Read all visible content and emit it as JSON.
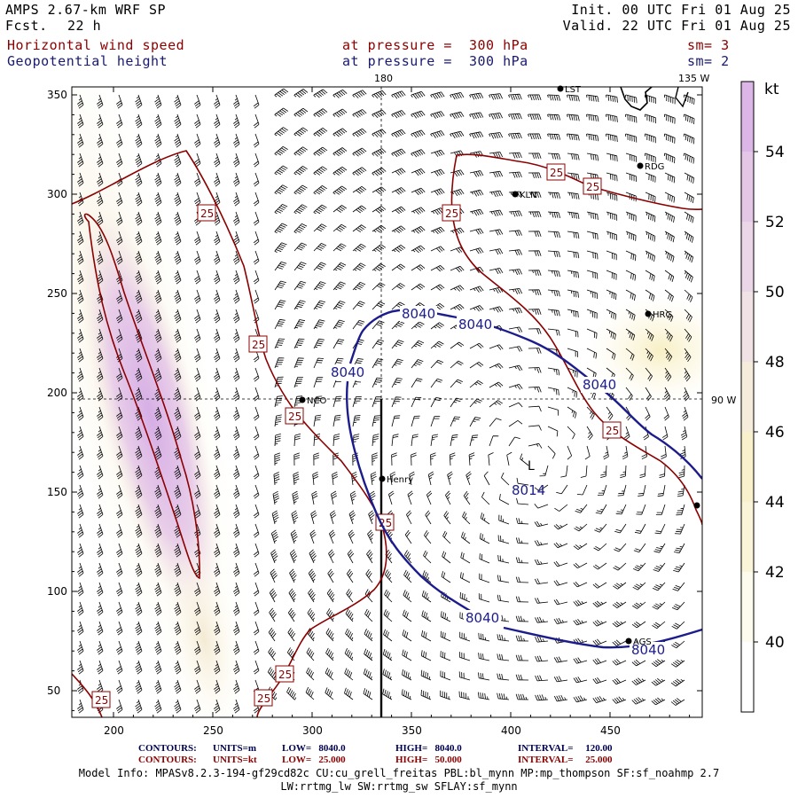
{
  "header": {
    "model": "AMPS 2.67-km WRF SP",
    "fcst_label": "Fcst.",
    "fcst_value": "22 h",
    "init": "Init. 00 UTC Fri 01 Aug 25",
    "valid": "Valid. 22 UTC Fri 01 Aug 25",
    "field1": "Horizontal wind speed",
    "field1_level": "at pressure =  300 hPa",
    "field1_sm": "sm= 3",
    "field2": "Geopotential height",
    "field2_level": "at pressure =  300 hPa",
    "field2_sm": "sm= 2"
  },
  "map": {
    "meridian_top_label": "180",
    "meridian_right_top_label": "135 W",
    "parallel_label": "90 W",
    "x_ticks": [
      "200",
      "250",
      "300",
      "350",
      "400",
      "450"
    ],
    "y_ticks": [
      "350",
      "300",
      "250",
      "200",
      "150",
      "100",
      "50"
    ],
    "stations": [
      {
        "name": "LST"
      },
      {
        "name": "RDG"
      },
      {
        "name": "KLN"
      },
      {
        "name": "HRG"
      },
      {
        "name": "NCO"
      },
      {
        "name": "Henry"
      },
      {
        "name": "AGS"
      }
    ],
    "height_contour_labels": [
      "8040",
      "8040",
      "8040",
      "8040",
      "8040",
      "8040"
    ],
    "low_center_label": "8014",
    "low_symbol": "L",
    "wind_contour_labels": [
      "25",
      "25",
      "25",
      "25",
      "25",
      "25",
      "25",
      "25",
      "25",
      "25",
      "25"
    ]
  },
  "colorbar": {
    "unit": "kt",
    "labels": [
      "54",
      "52",
      "50",
      "48",
      "46",
      "44",
      "42",
      "40"
    ],
    "colors": [
      "#dcb6e6",
      "#e4c6e6",
      "#ebd6e8",
      "#f1e2e6",
      "#f6ecdc",
      "#f8f1cc",
      "#faf5d8",
      "#fdfbee",
      "#ffffff"
    ]
  },
  "footer": {
    "line1_label": "CONTOURS:",
    "line1_units": "UNITS=m",
    "line1_low": "LOW=   8040.0",
    "line1_high": "HIGH=   8040.0",
    "line1_interval": "INTERVAL=     120.00",
    "line2_label": "CONTOURS:",
    "line2_units": "UNITS=kt",
    "line2_low": "LOW=   25.000",
    "line2_high": "HIGH=   50.000",
    "line2_interval": "INTERVAL=     25.000",
    "model_info": "Model Info: MPASv8.2.3-194-gf29cd82c CU:cu_grell_freitas PBL:bl_mynn MP:mp_thompson SF:sf_noahmp 2.7",
    "model_info2": "LW:rrtmg_lw SW:rrtmg_sw SFLAY:sf_mynn"
  }
}
